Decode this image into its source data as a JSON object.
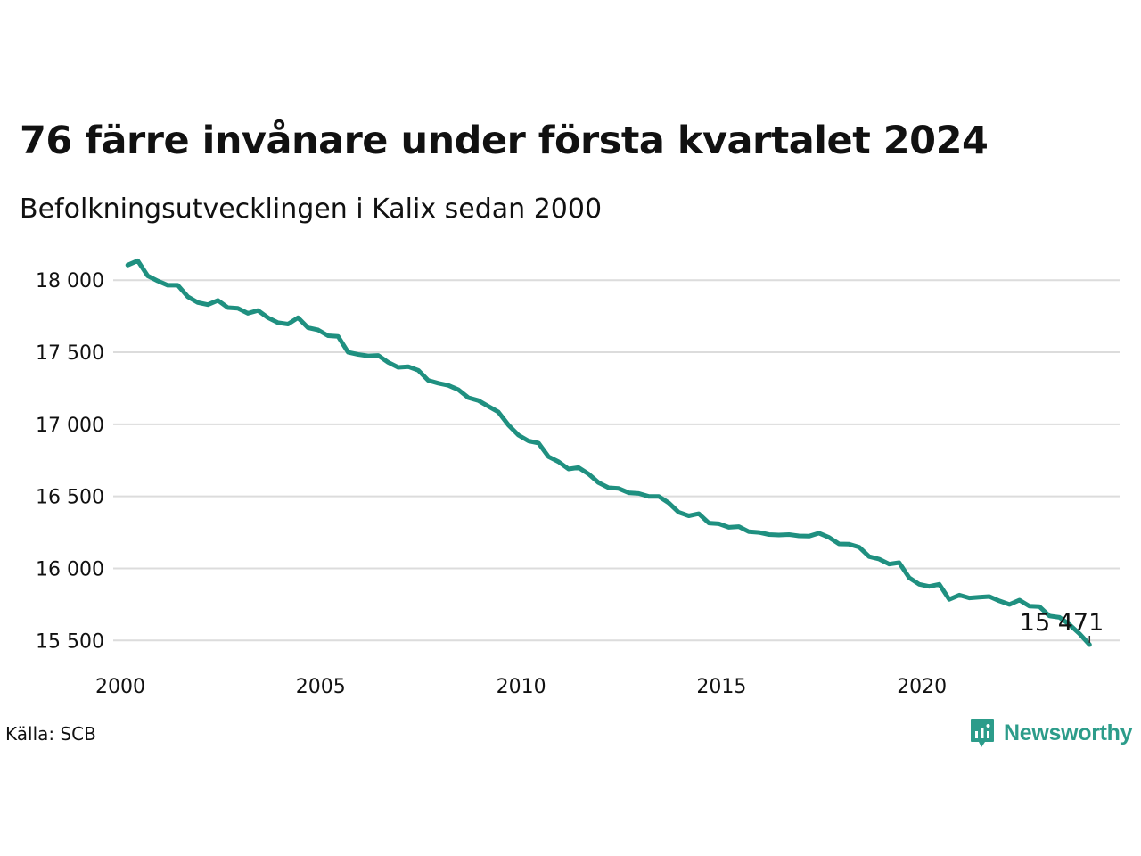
{
  "title": "76 färre invånare under första kvartalet 2024",
  "subtitle": "Befolkningsutvecklingen i Kalix sedan 2000",
  "source": "Källa: SCB",
  "brand": {
    "name": "Newsworthy",
    "icon": "newsworthy-logo-icon",
    "color": "#2c9c8a"
  },
  "colors": {
    "line": "#1f9080",
    "grid": "#dcdcdc",
    "text": "#111111"
  },
  "chart_data": {
    "type": "line",
    "title": "76 färre invånare under första kvartalet 2024",
    "subtitle": "Befolkningsutvecklingen i Kalix sedan 2000",
    "xlabel": "",
    "ylabel": "",
    "xlim": [
      2000,
      2025
    ],
    "ylim": [
      15440,
      18150
    ],
    "x_ticks": [
      2000,
      2005,
      2010,
      2015,
      2020
    ],
    "x_tick_labels": [
      "2000",
      "2005",
      "2010",
      "2015",
      "2020"
    ],
    "y_ticks": [
      15500,
      16000,
      16500,
      17000,
      17500,
      18000
    ],
    "y_tick_labels": [
      "15 500",
      "16 000",
      "16 500",
      "17 000",
      "17 500",
      "18 000"
    ],
    "grid": "horizontal",
    "series": [
      {
        "x": [
          2000.25,
          2000.5,
          2000.75,
          2001.0,
          2001.25,
          2001.5,
          2001.75,
          2002.0,
          2002.25,
          2002.5,
          2002.75,
          2003.0,
          2003.25,
          2003.5,
          2003.75,
          2004.0,
          2004.25,
          2004.5,
          2004.75,
          2005.0,
          2005.25,
          2005.5,
          2005.75,
          2006.0,
          2006.25,
          2006.5,
          2006.75,
          2007.0,
          2007.25,
          2007.5,
          2007.75,
          2008.0,
          2008.25,
          2008.5,
          2008.75,
          2009.0,
          2009.25,
          2009.5,
          2009.75,
          2010.0,
          2010.25,
          2010.5,
          2010.75,
          2011.0,
          2011.25,
          2011.5,
          2011.75,
          2012.0,
          2012.25,
          2012.5,
          2012.75,
          2013.0,
          2013.25,
          2013.5,
          2013.75,
          2014.0,
          2014.25,
          2014.5,
          2014.75,
          2015.0,
          2015.25,
          2015.5,
          2015.75,
          2016.0,
          2016.25,
          2016.5,
          2016.75,
          2017.0,
          2017.25,
          2017.5,
          2017.75,
          2018.0,
          2018.25,
          2018.5,
          2018.75,
          2019.0,
          2019.25,
          2019.5,
          2019.75,
          2020.0,
          2020.25,
          2020.5,
          2020.75,
          2021.0,
          2021.25,
          2021.5,
          2021.75,
          2022.0,
          2022.25,
          2022.5,
          2022.75,
          2023.0,
          2023.25,
          2023.5,
          2023.75,
          2024.0,
          2024.25
        ],
        "y": [
          18105,
          18135,
          18030,
          17995,
          17965,
          17965,
          17885,
          17845,
          17830,
          17860,
          17810,
          17805,
          17770,
          17790,
          17740,
          17705,
          17695,
          17740,
          17670,
          17655,
          17615,
          17610,
          17500,
          17485,
          17475,
          17478,
          17430,
          17395,
          17400,
          17375,
          17305,
          17285,
          17270,
          17240,
          17185,
          17165,
          17125,
          17085,
          16995,
          16925,
          16885,
          16870,
          16775,
          16740,
          16690,
          16700,
          16655,
          16595,
          16560,
          16555,
          16525,
          16520,
          16500,
          16500,
          16455,
          16390,
          16365,
          16380,
          16315,
          16310,
          16285,
          16290,
          16255,
          16250,
          16235,
          16232,
          16235,
          16226,
          16224,
          16245,
          16215,
          16170,
          16168,
          16148,
          16082,
          16065,
          16030,
          16040,
          15935,
          15890,
          15875,
          15890,
          15785,
          15815,
          15795,
          15800,
          15805,
          15775,
          15750,
          15780,
          15738,
          15735,
          15670,
          15660,
          15610,
          15547,
          15471
        ]
      }
    ],
    "end_label": "15 471"
  }
}
